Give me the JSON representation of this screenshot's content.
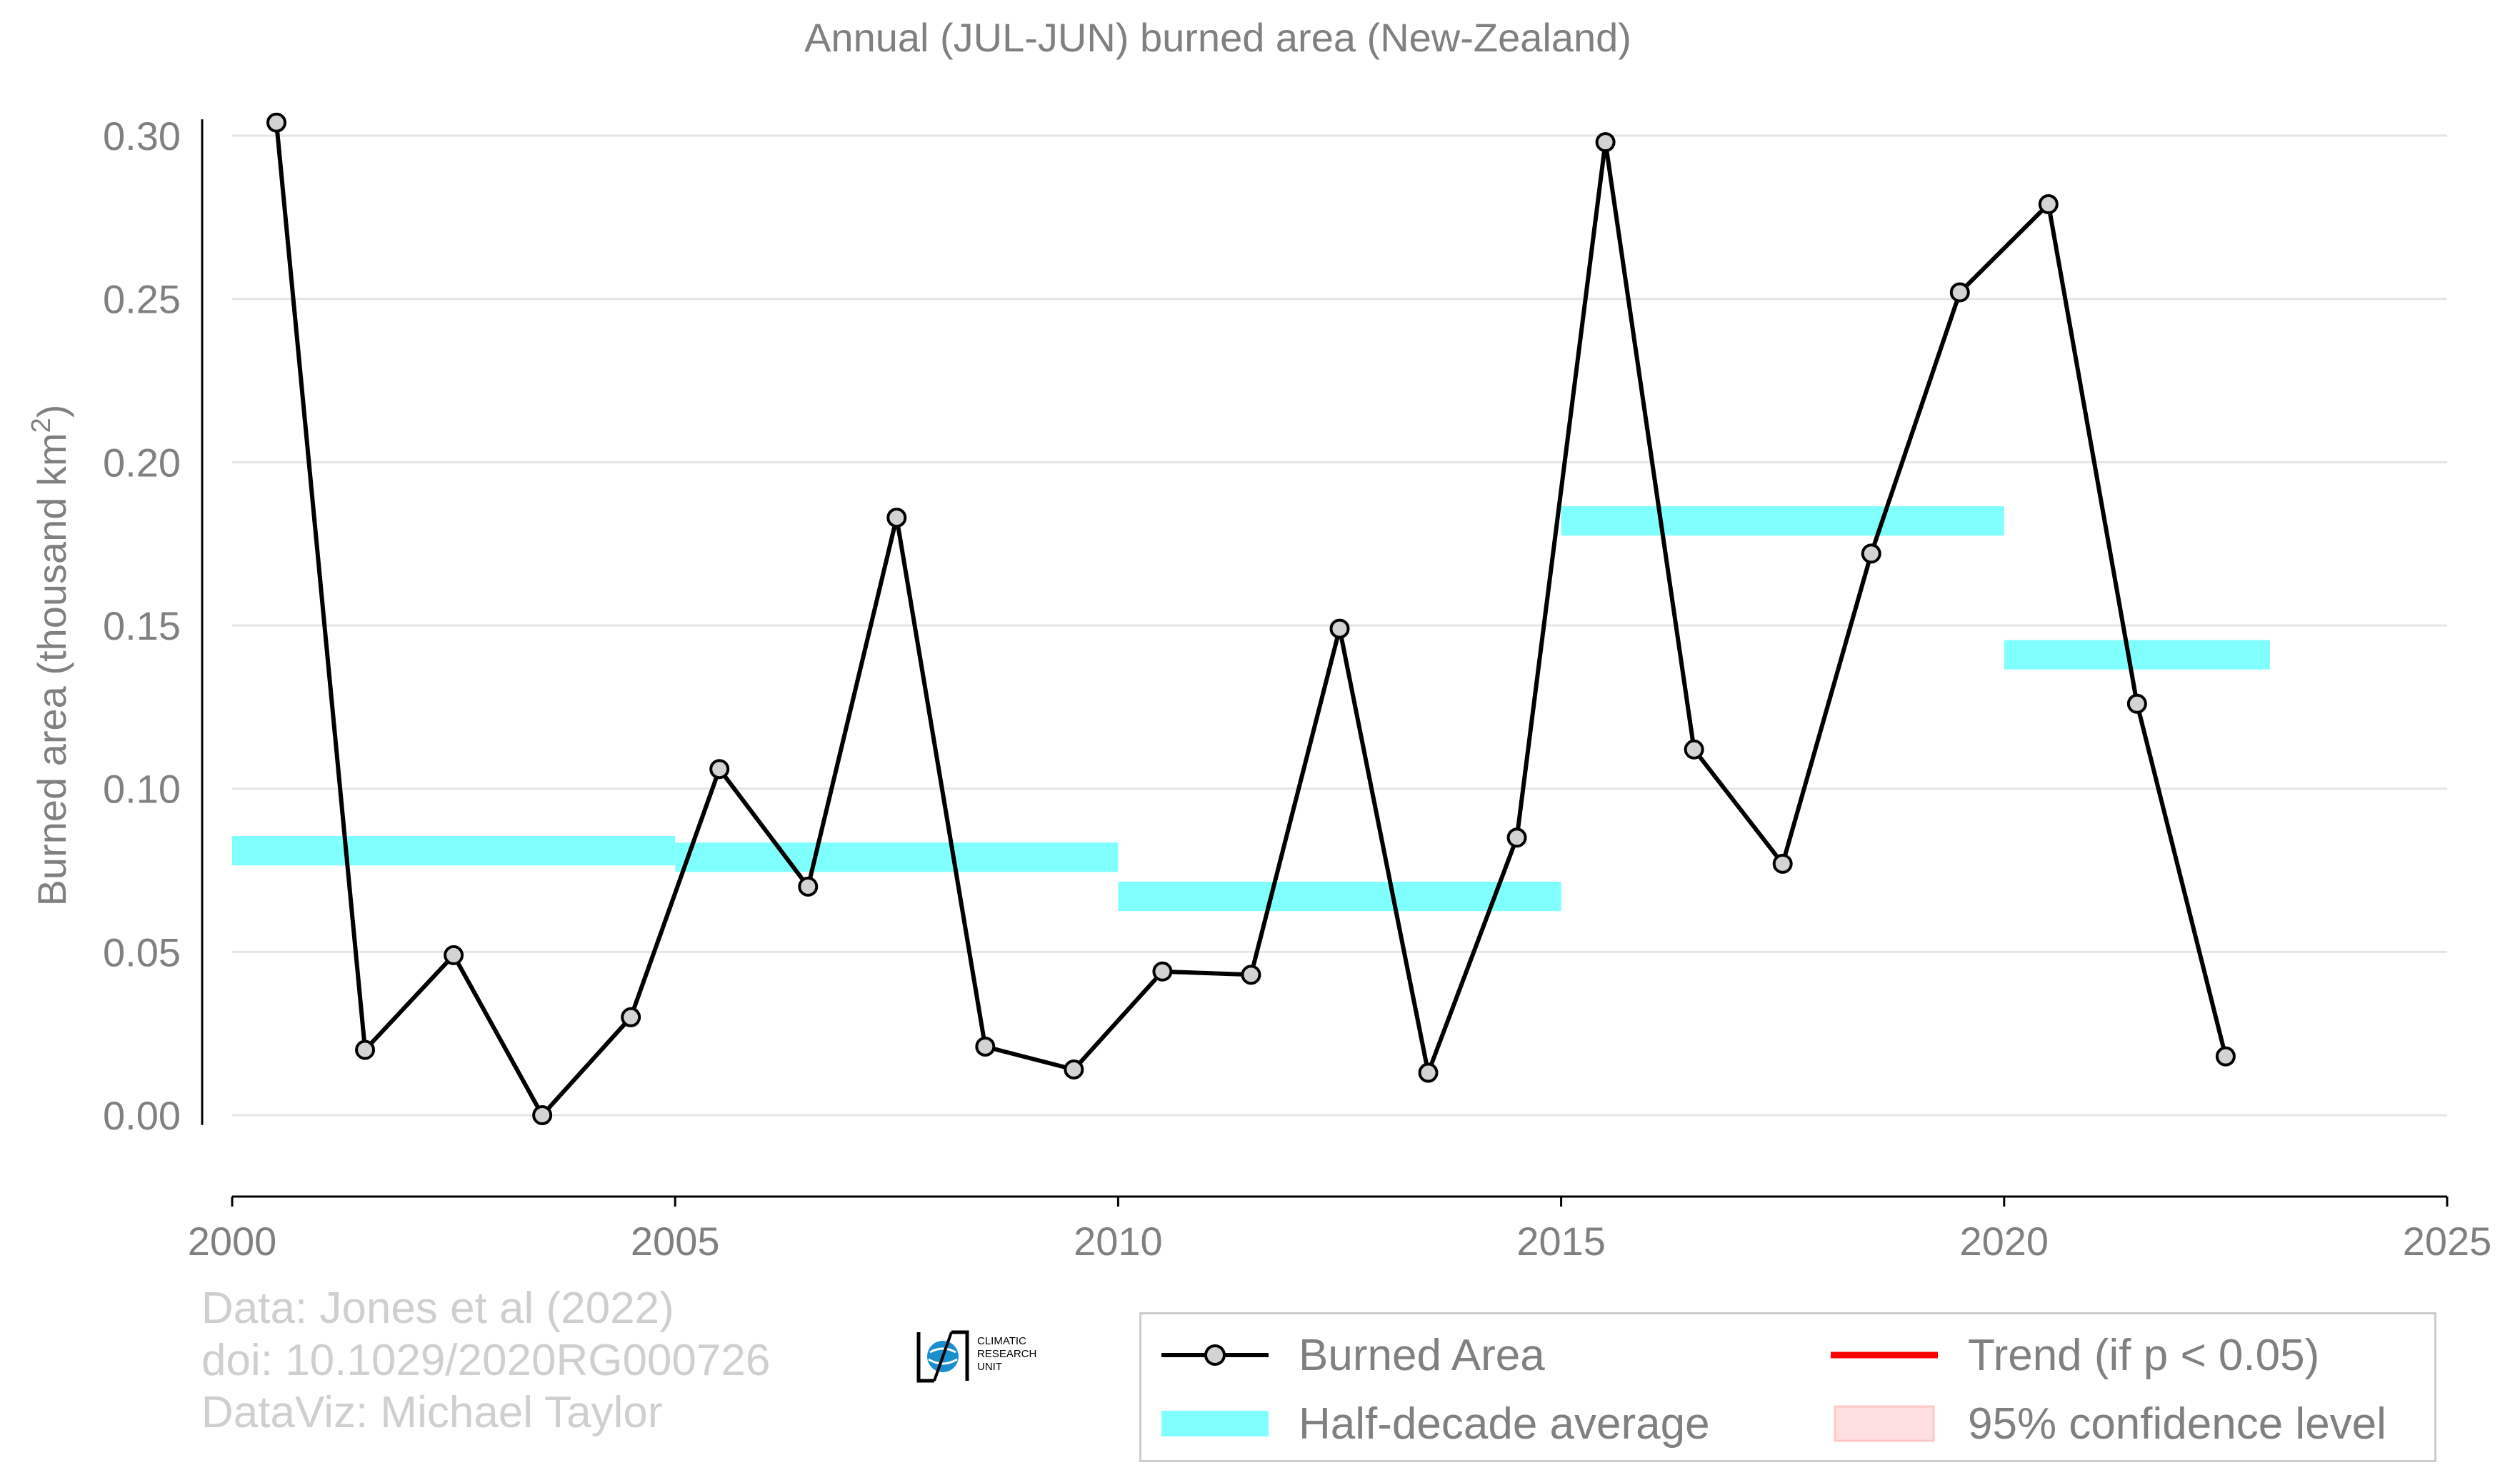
{
  "chart_data": {
    "type": "line",
    "title": "Annual (JUL-JUN) burned area (New-Zealand)",
    "ylabel": "Burned area (thousand km",
    "ylabel_superscript": "2",
    "ylabel_suffix": ")",
    "xlim": [
      2000,
      2025
    ],
    "ylim": [
      -0.025,
      0.305
    ],
    "x_ticks": [
      2000,
      2005,
      2010,
      2015,
      2020,
      2025
    ],
    "y_ticks": [
      0.0,
      0.05,
      0.1,
      0.15,
      0.2,
      0.25,
      0.3
    ],
    "y_tick_labels": [
      "0.00",
      "0.05",
      "0.10",
      "0.15",
      "0.20",
      "0.25",
      "0.30"
    ],
    "grid": "horizontal",
    "legend_placement": "bottom-right",
    "series": [
      {
        "name": "Burned Area",
        "kind": "line-with-markers",
        "color": "#000000",
        "marker_fill": "#d3d3d3",
        "x": [
          2000.5,
          2001.5,
          2002.5,
          2003.5,
          2004.5,
          2005.5,
          2006.5,
          2007.5,
          2008.5,
          2009.5,
          2010.5,
          2011.5,
          2012.5,
          2013.5,
          2014.5,
          2015.5,
          2016.5,
          2017.5,
          2018.5,
          2019.5,
          2020.5,
          2021.5,
          2022.5
        ],
        "y": [
          0.304,
          0.02,
          0.049,
          0.0,
          0.03,
          0.106,
          0.07,
          0.183,
          0.021,
          0.014,
          0.044,
          0.043,
          0.149,
          0.013,
          0.085,
          0.298,
          0.112,
          0.077,
          0.172,
          0.252,
          0.279,
          0.126,
          0.018
        ]
      },
      {
        "name": "Half-decade average",
        "kind": "step-bars",
        "color": "#80ffff",
        "segments": [
          {
            "x0": 2000,
            "x1": 2005,
            "y": 0.081
          },
          {
            "x0": 2005,
            "x1": 2010,
            "y": 0.079
          },
          {
            "x0": 2010,
            "x1": 2015,
            "y": 0.067
          },
          {
            "x0": 2015,
            "x1": 2020,
            "y": 0.182
          },
          {
            "x0": 2020,
            "x1": 2023,
            "y": 0.141
          }
        ]
      }
    ],
    "legend": [
      {
        "label": "Burned Area",
        "kind": "line-marker",
        "color": "#000000"
      },
      {
        "label": "Trend (if p < 0.05)",
        "kind": "line",
        "color": "#ff0000"
      },
      {
        "label": "Half-decade average",
        "kind": "band",
        "color": "#80ffff"
      },
      {
        "label": "95% confidence level",
        "kind": "patch",
        "color": "#ffe0e0"
      }
    ]
  },
  "credits": {
    "line1": "Data: Jones et al (2022)",
    "line2": "doi: 10.1029/2020RG000726",
    "line3": "DataViz: Michael Taylor"
  },
  "logo": {
    "line1": "CLIMATIC",
    "line2": "RESEARCH",
    "line3": "UNIT",
    "icon": "globe-icon"
  }
}
